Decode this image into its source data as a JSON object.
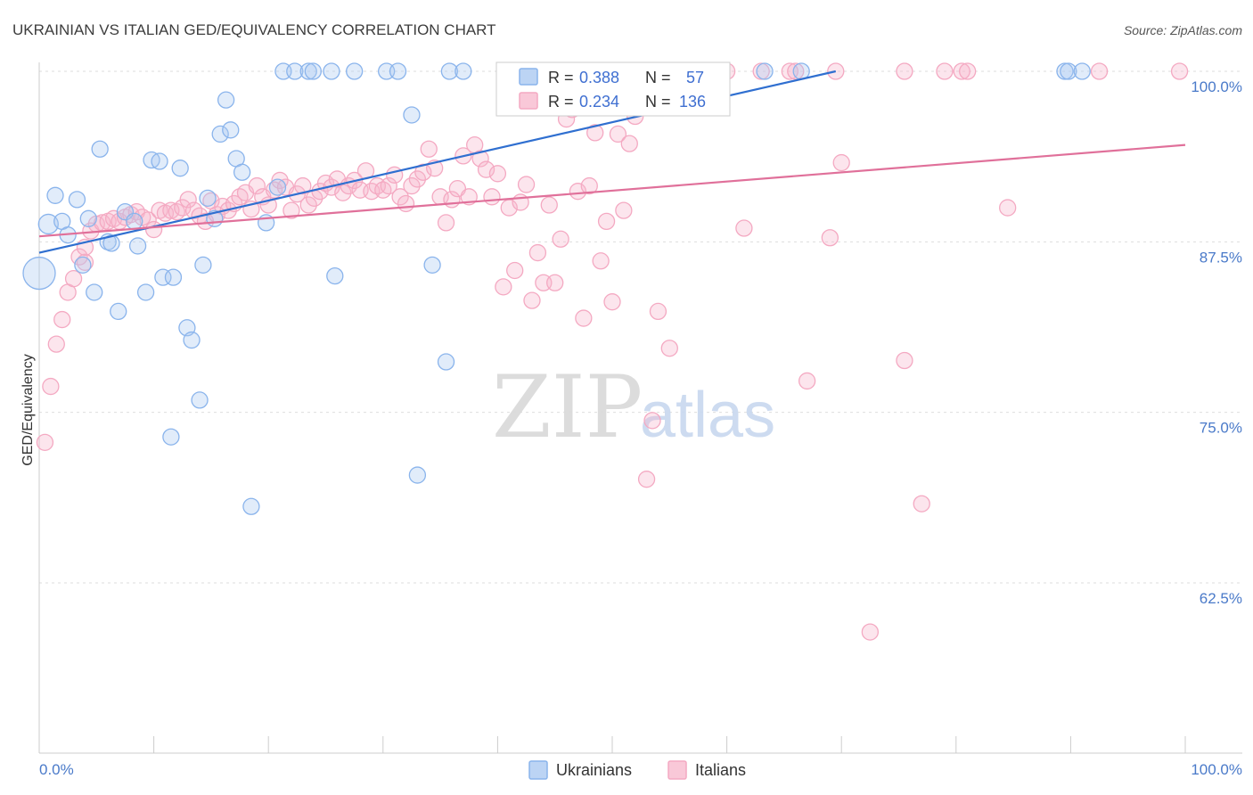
{
  "chart_data": {
    "type": "scatter",
    "title": "UKRAINIAN VS ITALIAN GED/EQUIVALENCY CORRELATION CHART",
    "source": "Source: ZipAtlas.com",
    "ylabel": "GED/Equivalency",
    "xlabel": "",
    "xlim": [
      0,
      100
    ],
    "ylim": [
      51.5,
      101.5
    ],
    "x_tick_labels": {
      "left": "0.0%",
      "right": "100.0%"
    },
    "y_ticks": [
      {
        "value": 100,
        "label": "100.0%"
      },
      {
        "value": 87.5,
        "label": "87.5%"
      },
      {
        "value": 75,
        "label": "75.0%"
      },
      {
        "value": 62.5,
        "label": "62.5%"
      }
    ],
    "watermark": {
      "zip": "ZIP",
      "atlas": "atlas"
    },
    "legend": {
      "r_label": "R =",
      "n_label": "N =",
      "entries": [
        {
          "r": "0.388",
          "n": "57"
        },
        {
          "r": "0.234",
          "n": "136"
        }
      ]
    },
    "series": [
      {
        "name": "Ukrainians",
        "color": "#8ab4ec",
        "line_color": "#2f6fd0",
        "trend": {
          "x0": 0,
          "y0": 86.7,
          "x1": 69.5,
          "y1": 100.0
        },
        "points": [
          [
            0.8,
            88.8,
            1
          ],
          [
            1.4,
            90.9,
            0
          ],
          [
            3.3,
            90.6,
            0
          ],
          [
            2.0,
            89.0,
            0
          ],
          [
            0.0,
            85.2,
            2
          ],
          [
            2.5,
            88.0,
            0
          ],
          [
            3.8,
            85.8,
            0
          ],
          [
            4.3,
            89.2,
            0
          ],
          [
            4.8,
            83.8,
            0
          ],
          [
            5.3,
            94.3,
            0
          ],
          [
            6.0,
            87.5,
            0
          ],
          [
            6.3,
            87.4,
            0
          ],
          [
            6.9,
            82.4,
            0
          ],
          [
            7.5,
            89.7,
            0
          ],
          [
            8.3,
            89.0,
            0
          ],
          [
            8.6,
            87.2,
            0
          ],
          [
            9.3,
            83.8,
            0
          ],
          [
            9.8,
            93.5,
            0
          ],
          [
            10.5,
            93.4,
            0
          ],
          [
            10.8,
            84.9,
            0
          ],
          [
            11.7,
            84.9,
            0
          ],
          [
            12.3,
            92.9,
            0
          ],
          [
            12.9,
            81.2,
            0
          ],
          [
            13.3,
            80.3,
            0
          ],
          [
            14.0,
            75.9,
            0
          ],
          [
            14.3,
            85.8,
            0
          ],
          [
            14.7,
            90.7,
            0
          ],
          [
            15.3,
            89.2,
            0
          ],
          [
            15.8,
            95.4,
            0
          ],
          [
            16.3,
            97.9,
            0
          ],
          [
            16.7,
            95.7,
            0
          ],
          [
            17.2,
            93.6,
            0
          ],
          [
            17.7,
            92.6,
            0
          ],
          [
            18.5,
            68.1,
            0
          ],
          [
            11.5,
            73.2,
            0
          ],
          [
            19.8,
            88.9,
            0
          ],
          [
            20.8,
            91.5,
            0
          ],
          [
            21.3,
            100.0,
            0
          ],
          [
            22.3,
            100.0,
            0
          ],
          [
            23.5,
            100.0,
            0
          ],
          [
            23.9,
            100.0,
            0
          ],
          [
            25.5,
            100.0,
            0
          ],
          [
            27.5,
            100.0,
            0
          ],
          [
            25.8,
            85.0,
            0
          ],
          [
            30.3,
            100.0,
            0
          ],
          [
            31.3,
            100.0,
            0
          ],
          [
            32.5,
            96.8,
            0
          ],
          [
            33.0,
            70.4,
            0
          ],
          [
            34.3,
            85.8,
            0
          ],
          [
            35.5,
            78.7,
            0
          ],
          [
            35.8,
            100.0,
            0
          ],
          [
            37.0,
            100.0,
            0
          ],
          [
            63.3,
            100.0,
            0
          ],
          [
            66.5,
            100.0,
            0
          ],
          [
            89.5,
            100.0,
            0
          ],
          [
            89.8,
            100.0,
            0
          ],
          [
            91.0,
            100.0,
            0
          ]
        ]
      },
      {
        "name": "Italians",
        "color": "#f4a9c2",
        "line_color": "#e0709a",
        "trend": {
          "x0": 0,
          "y0": 87.9,
          "x1": 100,
          "y1": 94.6
        },
        "points": [
          [
            0.5,
            72.8,
            0
          ],
          [
            1.0,
            76.9,
            0
          ],
          [
            1.5,
            80.0,
            0
          ],
          [
            2.0,
            81.8,
            0
          ],
          [
            2.5,
            83.8,
            0
          ],
          [
            3.0,
            84.8,
            0
          ],
          [
            3.5,
            86.4,
            0
          ],
          [
            4.0,
            86.0,
            0
          ],
          [
            4.0,
            87.1,
            0
          ],
          [
            4.5,
            88.3,
            0
          ],
          [
            5.0,
            88.8,
            0
          ],
          [
            5.5,
            88.9,
            0
          ],
          [
            6.0,
            89.0,
            0
          ],
          [
            6.5,
            89.2,
            0
          ],
          [
            7.0,
            89.0,
            0
          ],
          [
            7.5,
            89.3,
            0
          ],
          [
            8.0,
            89.5,
            0
          ],
          [
            8.5,
            89.7,
            0
          ],
          [
            9.0,
            89.3,
            0
          ],
          [
            9.5,
            89.1,
            0
          ],
          [
            10.0,
            88.4,
            0
          ],
          [
            10.5,
            89.8,
            0
          ],
          [
            11.0,
            89.6,
            0
          ],
          [
            11.5,
            89.8,
            0
          ],
          [
            12.0,
            89.7,
            0
          ],
          [
            12.5,
            90.0,
            0
          ],
          [
            13.0,
            90.6,
            0
          ],
          [
            13.5,
            89.8,
            0
          ],
          [
            14.0,
            89.4,
            0
          ],
          [
            14.5,
            89.0,
            0
          ],
          [
            15.0,
            90.5,
            0
          ],
          [
            15.5,
            89.5,
            0
          ],
          [
            16.0,
            90.1,
            0
          ],
          [
            16.5,
            89.8,
            0
          ],
          [
            17.0,
            90.3,
            0
          ],
          [
            17.5,
            90.8,
            0
          ],
          [
            18.0,
            91.1,
            0
          ],
          [
            18.5,
            89.9,
            0
          ],
          [
            19.0,
            91.6,
            0
          ],
          [
            19.5,
            90.8,
            0
          ],
          [
            20.0,
            90.2,
            0
          ],
          [
            20.5,
            91.3,
            0
          ],
          [
            21.0,
            92.0,
            0
          ],
          [
            21.5,
            91.5,
            0
          ],
          [
            22.0,
            89.8,
            0
          ],
          [
            22.5,
            91.0,
            0
          ],
          [
            23.0,
            91.6,
            0
          ],
          [
            23.5,
            90.2,
            0
          ],
          [
            24.0,
            90.7,
            0
          ],
          [
            24.5,
            91.2,
            0
          ],
          [
            25.0,
            91.8,
            0
          ],
          [
            25.5,
            91.5,
            0
          ],
          [
            26.0,
            92.1,
            0
          ],
          [
            26.5,
            91.1,
            0
          ],
          [
            27.0,
            91.6,
            0
          ],
          [
            27.5,
            92.0,
            0
          ],
          [
            28.0,
            91.3,
            0
          ],
          [
            28.5,
            92.7,
            0
          ],
          [
            29.0,
            91.2,
            0
          ],
          [
            29.5,
            91.6,
            0
          ],
          [
            30.0,
            91.3,
            0
          ],
          [
            30.5,
            91.6,
            0
          ],
          [
            31.0,
            92.4,
            0
          ],
          [
            31.5,
            90.8,
            0
          ],
          [
            32.0,
            90.3,
            0
          ],
          [
            32.5,
            91.6,
            0
          ],
          [
            33.0,
            92.1,
            0
          ],
          [
            33.5,
            92.6,
            0
          ],
          [
            34.0,
            94.3,
            0
          ],
          [
            34.5,
            92.9,
            0
          ],
          [
            35.0,
            90.8,
            0
          ],
          [
            35.5,
            88.9,
            0
          ],
          [
            36.0,
            90.6,
            0
          ],
          [
            36.5,
            91.4,
            0
          ],
          [
            37.0,
            93.8,
            0
          ],
          [
            37.5,
            90.8,
            0
          ],
          [
            38.0,
            94.6,
            0
          ],
          [
            38.5,
            93.6,
            0
          ],
          [
            39.0,
            92.8,
            0
          ],
          [
            39.5,
            90.8,
            0
          ],
          [
            40.0,
            92.5,
            0
          ],
          [
            40.5,
            84.2,
            0
          ],
          [
            41.0,
            90.0,
            0
          ],
          [
            41.5,
            85.4,
            0
          ],
          [
            42.0,
            90.4,
            0
          ],
          [
            42.5,
            91.7,
            0
          ],
          [
            43.0,
            83.2,
            0
          ],
          [
            43.5,
            86.7,
            0
          ],
          [
            44.0,
            84.5,
            0
          ],
          [
            44.5,
            90.2,
            0
          ],
          [
            45.0,
            84.5,
            0
          ],
          [
            45.5,
            87.7,
            0
          ],
          [
            46.0,
            96.5,
            0
          ],
          [
            46.5,
            97.2,
            0
          ],
          [
            47.0,
            91.2,
            0
          ],
          [
            47.5,
            81.9,
            0
          ],
          [
            48.0,
            91.6,
            0
          ],
          [
            48.5,
            95.5,
            0
          ],
          [
            49.0,
            86.1,
            0
          ],
          [
            49.5,
            89.0,
            0
          ],
          [
            50.0,
            83.1,
            0
          ],
          [
            50.5,
            95.4,
            0
          ],
          [
            51.0,
            89.8,
            0
          ],
          [
            51.5,
            94.7,
            0
          ],
          [
            52.0,
            96.7,
            0
          ],
          [
            52.5,
            98.0,
            0
          ],
          [
            53.0,
            70.1,
            0
          ],
          [
            53.5,
            74.4,
            0
          ],
          [
            54.0,
            82.4,
            0
          ],
          [
            55.0,
            79.7,
            0
          ],
          [
            60.0,
            100.0,
            0
          ],
          [
            61.5,
            88.5,
            0
          ],
          [
            63.0,
            100.0,
            0
          ],
          [
            65.5,
            100.0,
            0
          ],
          [
            67.0,
            77.3,
            0
          ],
          [
            69.0,
            87.8,
            0
          ],
          [
            70.0,
            93.3,
            0
          ],
          [
            72.5,
            58.9,
            0
          ],
          [
            75.5,
            100.0,
            0
          ],
          [
            75.5,
            78.8,
            0
          ],
          [
            77.0,
            68.3,
            0
          ],
          [
            79.0,
            100.0,
            0
          ],
          [
            80.5,
            100.0,
            0
          ],
          [
            81.0,
            100.0,
            0
          ],
          [
            84.5,
            90.0,
            0
          ],
          [
            58.5,
            100.0,
            0
          ],
          [
            59.5,
            100.0,
            0
          ],
          [
            66.0,
            100.0,
            0
          ],
          [
            69.5,
            100.0,
            0
          ],
          [
            92.5,
            100.0,
            0
          ],
          [
            99.5,
            100.0,
            0
          ]
        ]
      }
    ]
  }
}
